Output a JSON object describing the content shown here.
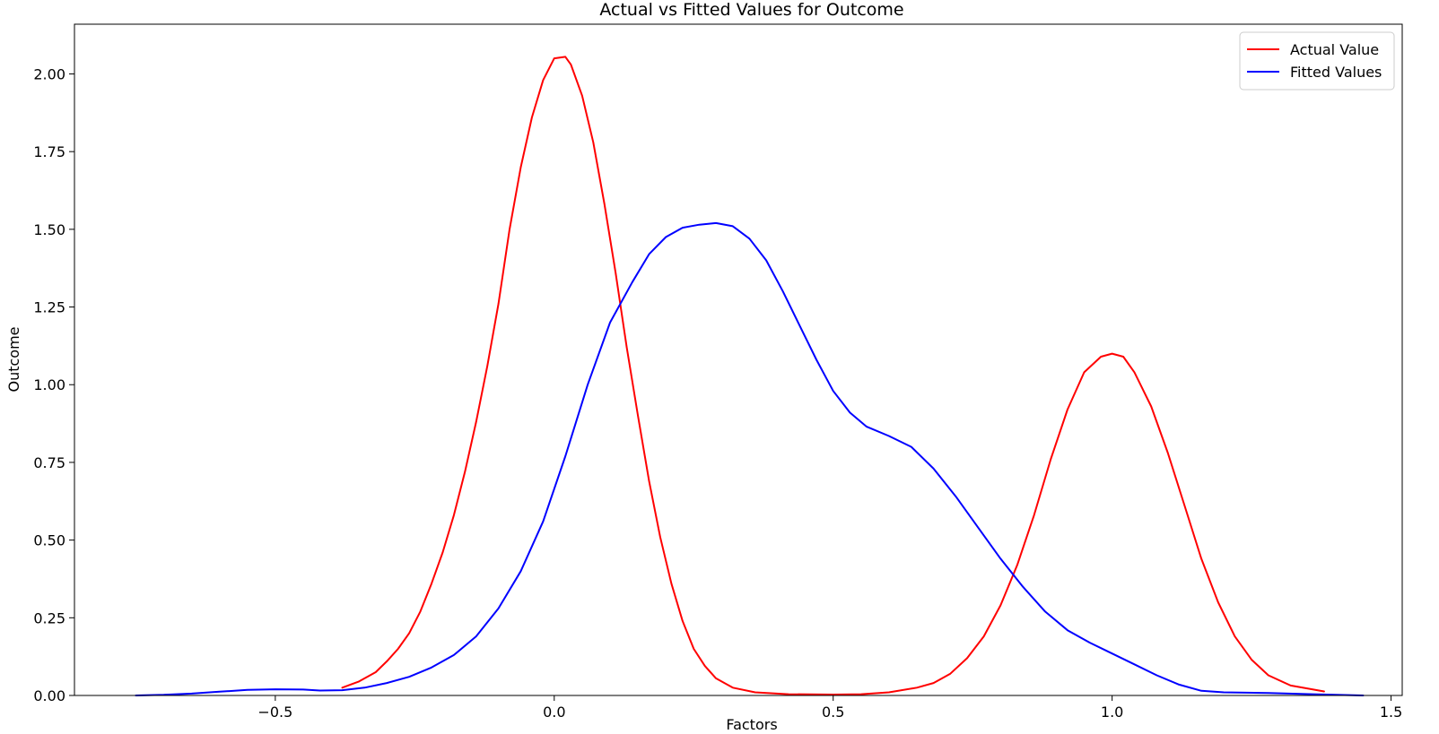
{
  "chart_data": {
    "type": "line",
    "title": "Actual vs Fitted Values for Outcome",
    "xlabel": "Factors",
    "ylabel": "Outcome",
    "xlim": [
      -0.86,
      1.52
    ],
    "ylim": [
      0,
      2.16
    ],
    "xticks": [
      -0.5,
      0.0,
      0.5,
      1.0,
      1.5
    ],
    "xtick_labels": [
      "−0.5",
      "0.0",
      "0.5",
      "1.0",
      "1.5"
    ],
    "yticks": [
      0,
      0.25,
      0.5,
      0.75,
      1.0,
      1.25,
      1.5,
      1.75,
      2.0
    ],
    "ytick_labels": [
      "0.00",
      "0.25",
      "0.50",
      "0.75",
      "1.00",
      "1.25",
      "1.50",
      "1.75",
      "2.00"
    ],
    "grid": false,
    "legend_position": "top-right",
    "series": [
      {
        "name": "Actual Value",
        "color": "#ff0000",
        "points": [
          [
            -0.38,
            0.025
          ],
          [
            -0.35,
            0.045
          ],
          [
            -0.32,
            0.075
          ],
          [
            -0.3,
            0.11
          ],
          [
            -0.28,
            0.15
          ],
          [
            -0.26,
            0.2
          ],
          [
            -0.24,
            0.27
          ],
          [
            -0.22,
            0.36
          ],
          [
            -0.2,
            0.46
          ],
          [
            -0.18,
            0.58
          ],
          [
            -0.16,
            0.72
          ],
          [
            -0.14,
            0.88
          ],
          [
            -0.12,
            1.06
          ],
          [
            -0.1,
            1.26
          ],
          [
            -0.08,
            1.5
          ],
          [
            -0.06,
            1.7
          ],
          [
            -0.04,
            1.86
          ],
          [
            -0.02,
            1.98
          ],
          [
            0.0,
            2.05
          ],
          [
            0.02,
            2.055
          ],
          [
            0.03,
            2.03
          ],
          [
            0.05,
            1.93
          ],
          [
            0.07,
            1.78
          ],
          [
            0.09,
            1.58
          ],
          [
            0.11,
            1.36
          ],
          [
            0.13,
            1.12
          ],
          [
            0.15,
            0.9
          ],
          [
            0.17,
            0.69
          ],
          [
            0.19,
            0.51
          ],
          [
            0.21,
            0.36
          ],
          [
            0.23,
            0.24
          ],
          [
            0.25,
            0.15
          ],
          [
            0.27,
            0.095
          ],
          [
            0.29,
            0.055
          ],
          [
            0.32,
            0.025
          ],
          [
            0.36,
            0.01
          ],
          [
            0.42,
            0.004
          ],
          [
            0.5,
            0.003
          ],
          [
            0.55,
            0.004
          ],
          [
            0.6,
            0.01
          ],
          [
            0.65,
            0.025
          ],
          [
            0.68,
            0.04
          ],
          [
            0.71,
            0.07
          ],
          [
            0.74,
            0.12
          ],
          [
            0.77,
            0.19
          ],
          [
            0.8,
            0.29
          ],
          [
            0.83,
            0.42
          ],
          [
            0.86,
            0.58
          ],
          [
            0.89,
            0.76
          ],
          [
            0.92,
            0.92
          ],
          [
            0.95,
            1.04
          ],
          [
            0.98,
            1.09
          ],
          [
            1.0,
            1.1
          ],
          [
            1.02,
            1.09
          ],
          [
            1.04,
            1.04
          ],
          [
            1.07,
            0.93
          ],
          [
            1.1,
            0.78
          ],
          [
            1.13,
            0.61
          ],
          [
            1.16,
            0.44
          ],
          [
            1.19,
            0.3
          ],
          [
            1.22,
            0.19
          ],
          [
            1.25,
            0.115
          ],
          [
            1.28,
            0.065
          ],
          [
            1.32,
            0.032
          ],
          [
            1.38,
            0.013
          ]
        ]
      },
      {
        "name": "Fitted Values",
        "color": "#0000ff",
        "points": [
          [
            -0.75,
            0.0
          ],
          [
            -0.7,
            0.002
          ],
          [
            -0.65,
            0.006
          ],
          [
            -0.6,
            0.012
          ],
          [
            -0.55,
            0.018
          ],
          [
            -0.5,
            0.02
          ],
          [
            -0.45,
            0.019
          ],
          [
            -0.42,
            0.016
          ],
          [
            -0.38,
            0.017
          ],
          [
            -0.34,
            0.025
          ],
          [
            -0.3,
            0.04
          ],
          [
            -0.26,
            0.06
          ],
          [
            -0.22,
            0.09
          ],
          [
            -0.18,
            0.13
          ],
          [
            -0.14,
            0.19
          ],
          [
            -0.1,
            0.28
          ],
          [
            -0.06,
            0.4
          ],
          [
            -0.02,
            0.56
          ],
          [
            0.02,
            0.77
          ],
          [
            0.06,
            1.0
          ],
          [
            0.1,
            1.2
          ],
          [
            0.14,
            1.33
          ],
          [
            0.17,
            1.42
          ],
          [
            0.2,
            1.475
          ],
          [
            0.23,
            1.505
          ],
          [
            0.26,
            1.515
          ],
          [
            0.29,
            1.52
          ],
          [
            0.32,
            1.51
          ],
          [
            0.35,
            1.47
          ],
          [
            0.38,
            1.4
          ],
          [
            0.41,
            1.3
          ],
          [
            0.44,
            1.19
          ],
          [
            0.47,
            1.08
          ],
          [
            0.5,
            0.98
          ],
          [
            0.53,
            0.91
          ],
          [
            0.56,
            0.865
          ],
          [
            0.6,
            0.835
          ],
          [
            0.64,
            0.8
          ],
          [
            0.68,
            0.73
          ],
          [
            0.72,
            0.64
          ],
          [
            0.76,
            0.54
          ],
          [
            0.8,
            0.44
          ],
          [
            0.84,
            0.35
          ],
          [
            0.88,
            0.27
          ],
          [
            0.92,
            0.21
          ],
          [
            0.96,
            0.17
          ],
          [
            1.0,
            0.135
          ],
          [
            1.04,
            0.1
          ],
          [
            1.08,
            0.065
          ],
          [
            1.12,
            0.035
          ],
          [
            1.16,
            0.015
          ],
          [
            1.2,
            0.01
          ],
          [
            1.28,
            0.008
          ],
          [
            1.36,
            0.004
          ],
          [
            1.45,
            0.0
          ]
        ]
      }
    ]
  }
}
